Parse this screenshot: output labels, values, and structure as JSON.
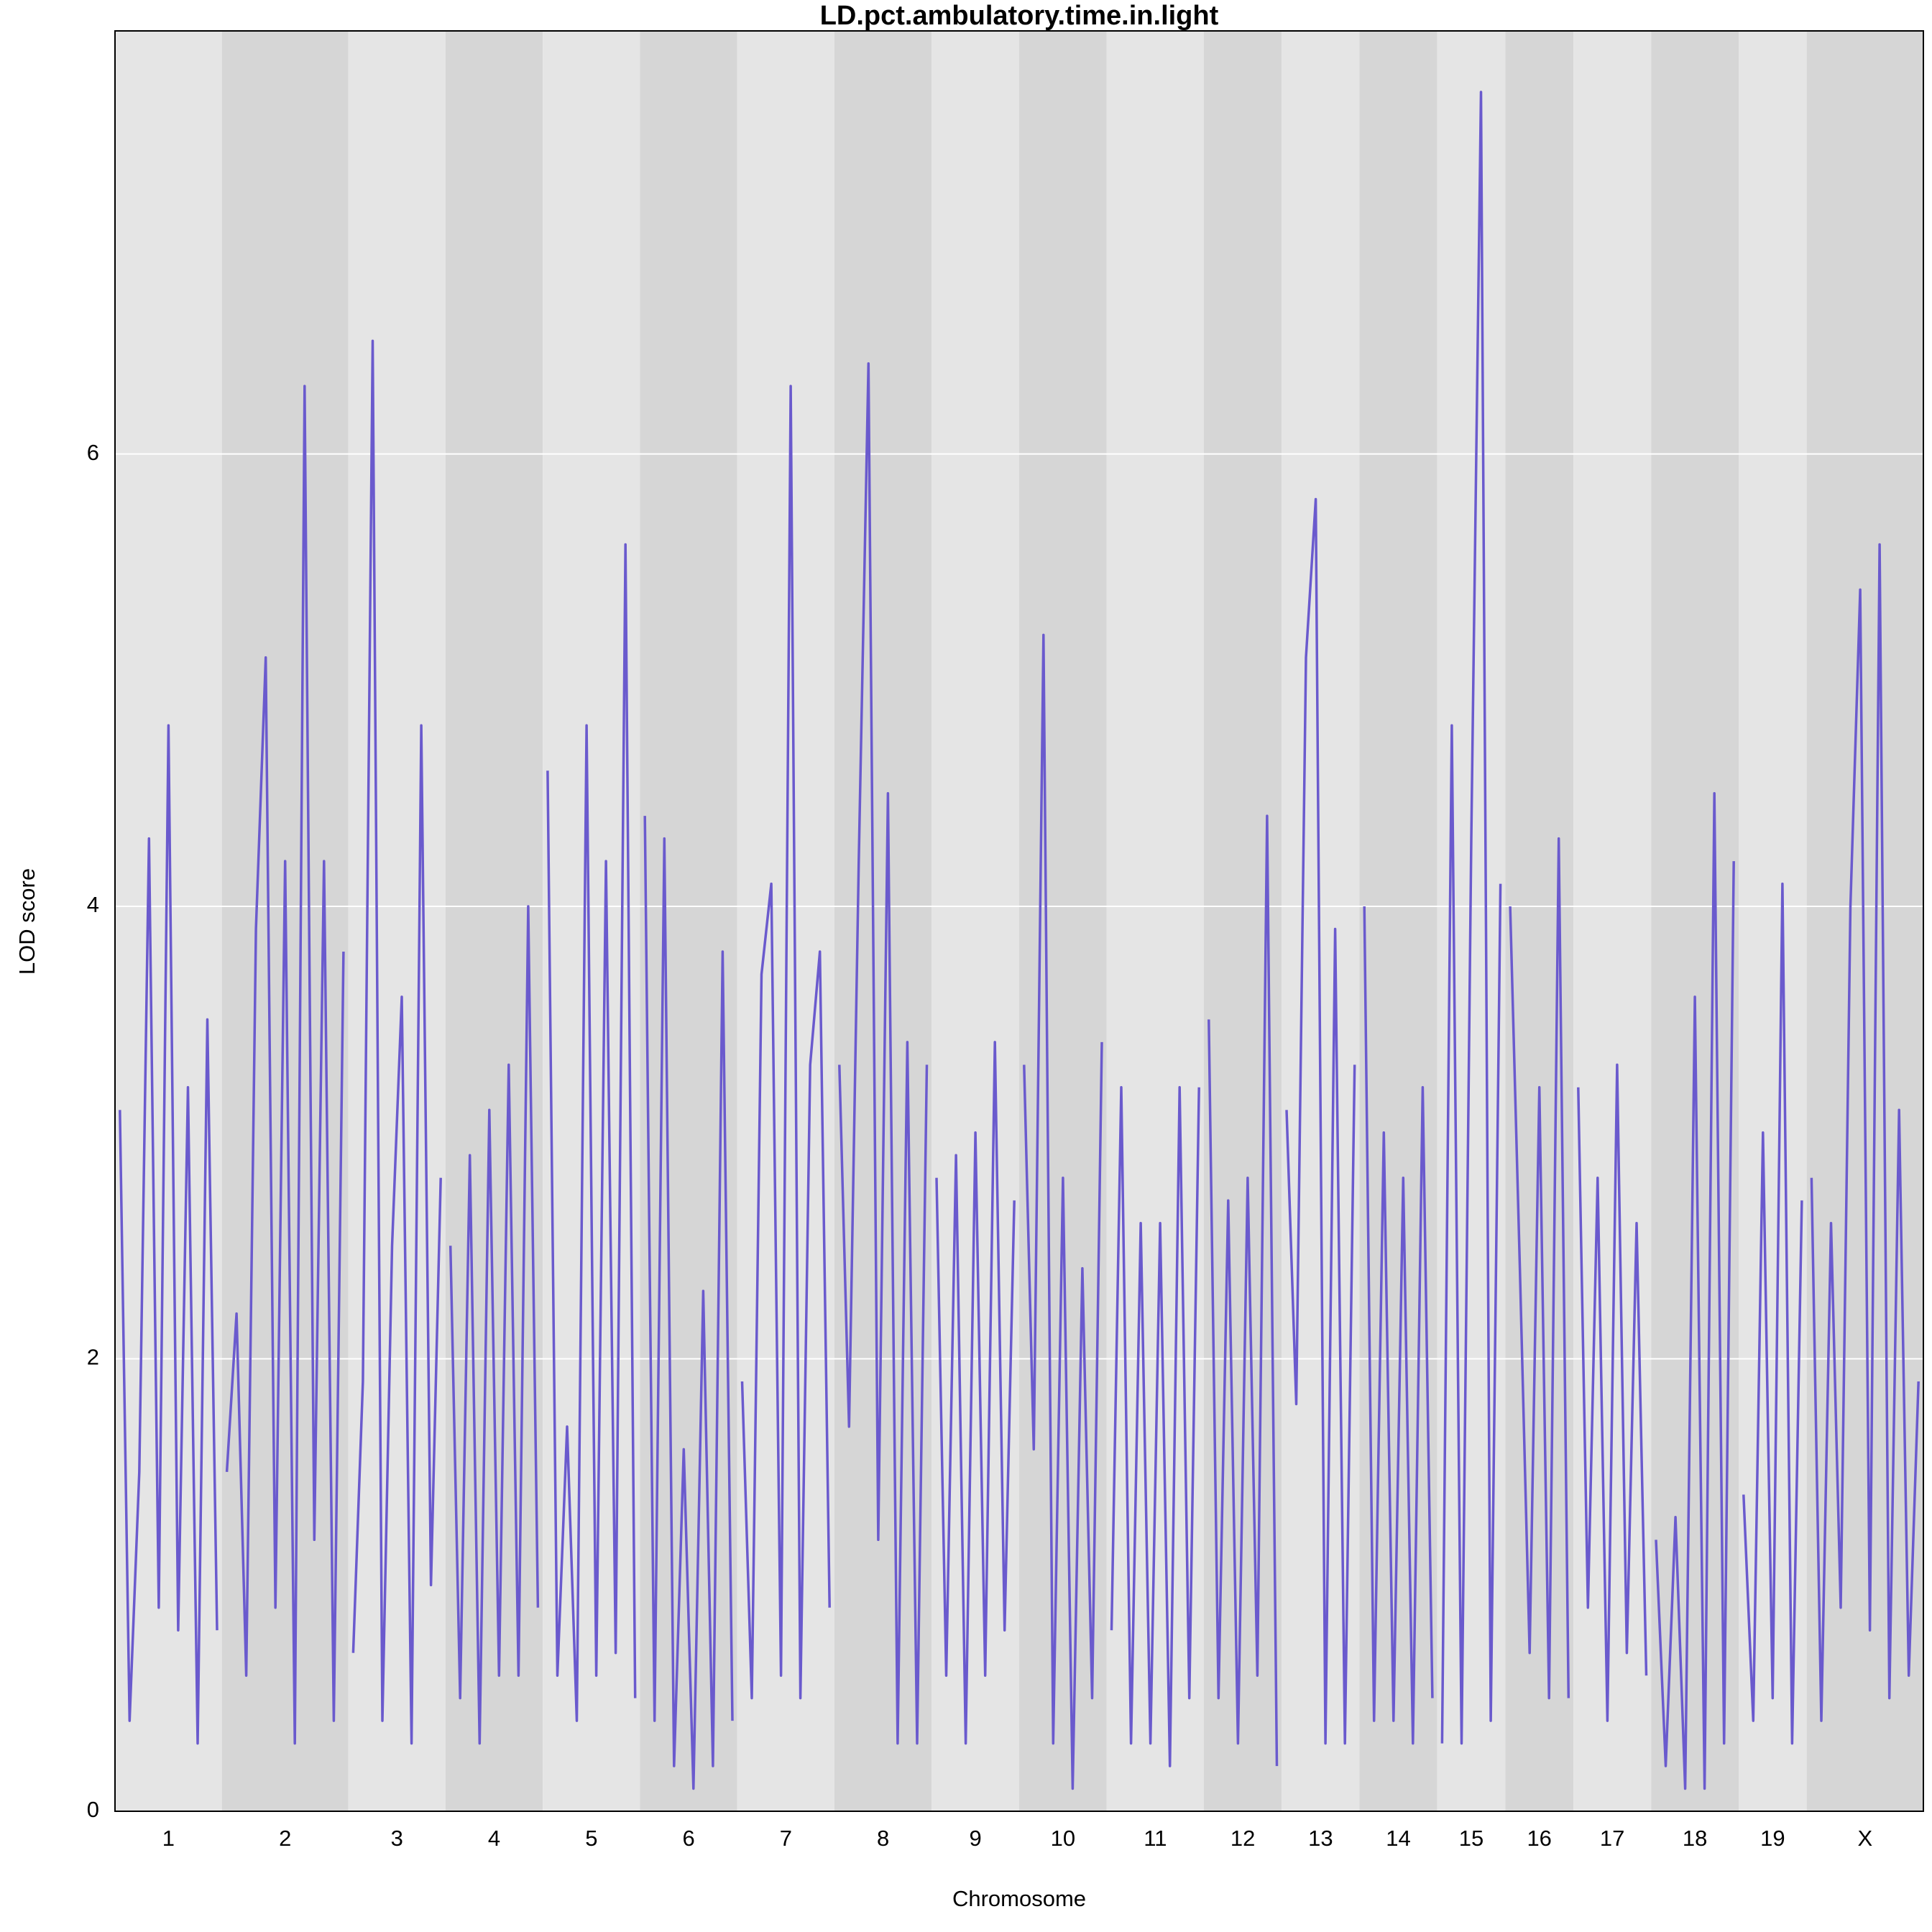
{
  "chart_data": {
    "type": "lod",
    "title": "LD.pct.ambulatory.time.in.light",
    "x_label": "Chromosome",
    "y_label": "LOD score",
    "color": "#6a5acd",
    "ylim": [
      0,
      7.87
    ],
    "yticks": [
      0,
      2,
      4,
      6
    ],
    "grid": true,
    "chromosomes": [
      {
        "name": "1",
        "values": [
          3.1,
          0.4,
          1.5,
          4.3,
          0.9,
          4.8,
          0.8,
          3.2,
          0.3,
          3.5,
          0.8
        ]
      },
      {
        "name": "2",
        "values": [
          1.5,
          2.2,
          0.6,
          3.9,
          5.1,
          0.9,
          4.2,
          0.3,
          6.3,
          1.2,
          4.2,
          0.4,
          3.8
        ]
      },
      {
        "name": "3",
        "values": [
          0.7,
          1.9,
          6.5,
          0.4,
          2.5,
          3.6,
          0.3,
          4.8,
          1.0,
          2.8
        ]
      },
      {
        "name": "4",
        "values": [
          2.5,
          0.5,
          2.9,
          0.3,
          3.1,
          0.6,
          3.3,
          0.6,
          4.0,
          0.9
        ]
      },
      {
        "name": "5",
        "values": [
          4.6,
          0.6,
          1.7,
          0.4,
          4.8,
          0.6,
          4.2,
          0.7,
          5.6,
          0.5
        ]
      },
      {
        "name": "6",
        "values": [
          4.4,
          0.4,
          4.3,
          0.2,
          1.6,
          0.1,
          2.3,
          0.2,
          3.8,
          0.4
        ]
      },
      {
        "name": "7",
        "values": [
          1.9,
          0.5,
          3.7,
          4.1,
          0.6,
          6.3,
          0.5,
          3.3,
          3.8,
          0.9
        ]
      },
      {
        "name": "8",
        "values": [
          3.3,
          1.7,
          4.2,
          6.4,
          1.2,
          4.5,
          0.3,
          3.4,
          0.3,
          3.3
        ]
      },
      {
        "name": "9",
        "values": [
          2.8,
          0.6,
          2.9,
          0.3,
          3.0,
          0.6,
          3.4,
          0.8,
          2.7
        ]
      },
      {
        "name": "10",
        "values": [
          3.3,
          1.6,
          5.2,
          0.3,
          2.8,
          0.1,
          2.4,
          0.5,
          3.4
        ]
      },
      {
        "name": "11",
        "values": [
          0.8,
          3.2,
          0.3,
          2.6,
          0.3,
          2.6,
          0.2,
          3.2,
          0.5,
          3.2
        ]
      },
      {
        "name": "12",
        "values": [
          3.5,
          0.5,
          2.7,
          0.3,
          2.8,
          0.6,
          4.4,
          0.2
        ]
      },
      {
        "name": "13",
        "values": [
          3.1,
          1.8,
          5.1,
          5.8,
          0.3,
          3.9,
          0.3,
          3.3
        ]
      },
      {
        "name": "14",
        "values": [
          4.0,
          0.4,
          3.0,
          0.4,
          2.8,
          0.3,
          3.2,
          0.5
        ]
      },
      {
        "name": "15",
        "values": [
          0.3,
          4.8,
          0.3,
          4.3,
          7.6,
          0.4,
          4.1
        ]
      },
      {
        "name": "16",
        "values": [
          4.0,
          2.4,
          0.7,
          3.2,
          0.5,
          4.3,
          0.5
        ]
      },
      {
        "name": "17",
        "values": [
          3.2,
          0.9,
          2.8,
          0.4,
          3.3,
          0.7,
          2.6,
          0.6
        ]
      },
      {
        "name": "18",
        "values": [
          1.2,
          0.2,
          1.3,
          0.1,
          3.6,
          0.1,
          4.5,
          0.3,
          4.2
        ]
      },
      {
        "name": "19",
        "values": [
          1.4,
          0.4,
          3.0,
          0.5,
          4.1,
          0.3,
          2.7
        ]
      },
      {
        "name": "X",
        "values": [
          2.8,
          0.4,
          2.6,
          0.9,
          4.0,
          5.4,
          0.8,
          5.6,
          0.5,
          3.1,
          0.6,
          1.9
        ]
      }
    ]
  }
}
